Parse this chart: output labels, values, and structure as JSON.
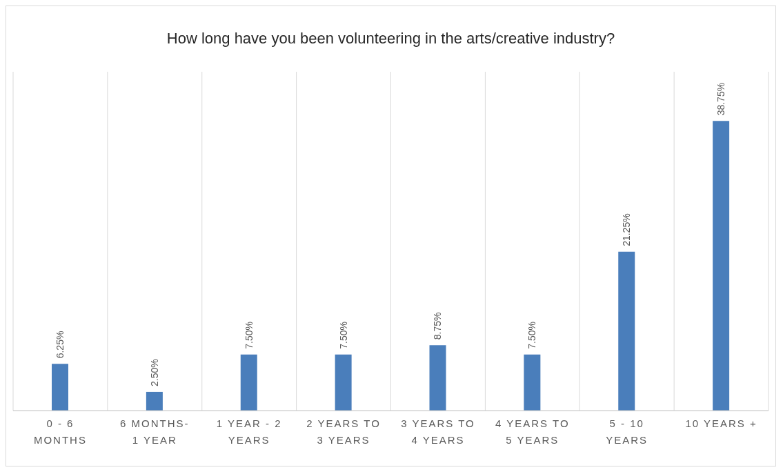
{
  "chart_data": {
    "type": "bar",
    "title": "How long have you been volunteering in the arts/creative  industry?",
    "categories": [
      "0 - 6 MONTHS",
      "6 MONTHS- 1 YEAR",
      "1 YEAR - 2 YEARS",
      "2 YEARS TO 3 YEARS",
      "3 YEARS TO 4 YEARS",
      "4 YEARS TO 5 YEARS",
      "5 - 10 YEARS",
      "10 YEARS +"
    ],
    "values": [
      6.25,
      2.5,
      7.5,
      7.5,
      8.75,
      7.5,
      21.25,
      38.75
    ],
    "value_labels": [
      "6.25%",
      "2.50%",
      "7.50%",
      "7.50%",
      "8.75%",
      "7.50%",
      "21.25%",
      "38.75%"
    ],
    "color": "#4a7ebb",
    "grid": "x"
  }
}
